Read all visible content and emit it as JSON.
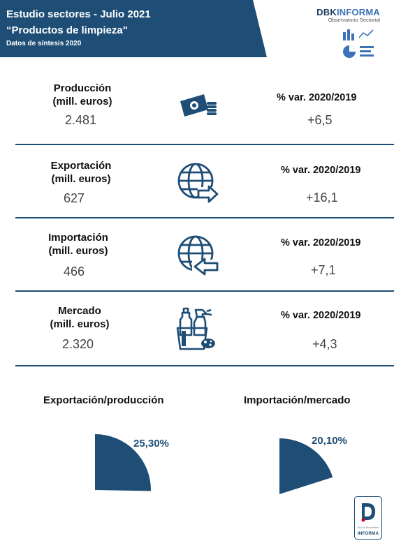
{
  "header": {
    "line1": "Estudio sectores - Julio 2021",
    "line2": "“Productos de limpieza\"",
    "line3": "Datos de síntesis 2020",
    "band_color": "#1e4d75"
  },
  "brand": {
    "name_part1": "DBK",
    "name_part2": "INFORMA",
    "subtitle": "Observatorio Sectorial"
  },
  "rows": [
    {
      "label_line1": "Producción",
      "label_line2": "(mill. euros)",
      "value": "2.481",
      "var_label": "% var. 2020/2019",
      "var_value": "+6,5",
      "icon": "money-coins-icon"
    },
    {
      "label_line1": "Exportación",
      "label_line2": "(mill. euros)",
      "value": "627",
      "var_label": "% var. 2020/2019",
      "var_value": "+16,1",
      "icon": "globe-export-icon"
    },
    {
      "label_line1": "Importación",
      "label_line2": "(mill. euros)",
      "value": "466",
      "var_label": "% var. 2020/2019",
      "var_value": "+7,1",
      "icon": "globe-import-icon"
    },
    {
      "label_line1": "Mercado",
      "label_line2": "(mill. euros)",
      "value": "2.320",
      "var_label": "% var. 2020/2019",
      "var_value": "+4,3",
      "icon": "cleaning-products-icon"
    }
  ],
  "ratios": [
    {
      "title": "Exportación/producción",
      "value_label": "25,30%",
      "value": 25.3
    },
    {
      "title": "Importación/mercado",
      "value_label": "20,10%",
      "value": 20.1
    }
  ],
  "footer": {
    "logo_text": "INFORMA",
    "logo_small": "Dun & Bradstreet"
  },
  "colors": {
    "primary": "#1e4d75",
    "accent": "#3d72b8",
    "logo_red": "#d0021b"
  }
}
